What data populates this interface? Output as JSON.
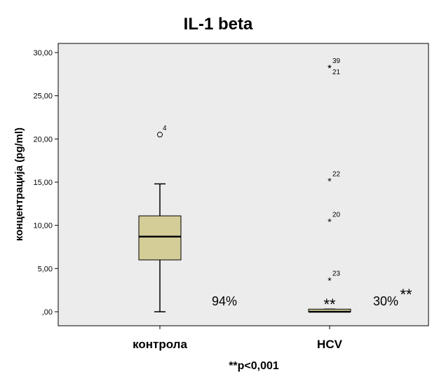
{
  "chart_data": {
    "type": "boxplot",
    "title": "IL-1 beta",
    "ylabel": "концентрација (pg/ml)",
    "xlabel": "",
    "ylim": [
      -1.5,
      32
    ],
    "yticks": [
      0,
      5,
      10,
      15,
      20,
      25,
      30
    ],
    "ytick_labels": [
      ",00",
      "5,00",
      "10,00",
      "15,00",
      "20,00",
      "25,00",
      "30,00"
    ],
    "categories": [
      "контрола",
      "HCV"
    ],
    "boxes": [
      {
        "category": "контрола",
        "whisker_low": 0.0,
        "q1": 6.0,
        "median": 8.7,
        "q3": 11.1,
        "whisker_high": 14.8,
        "outliers": [
          {
            "value": 20.5,
            "marker": "circle",
            "label": "4"
          }
        ],
        "annotation": "94%"
      },
      {
        "category": "HCV",
        "whisker_low": 0.0,
        "q1": 0.0,
        "median": 0.0,
        "q3": 0.3,
        "whisker_high": 0.3,
        "outliers": [
          {
            "value": 28.3,
            "marker": "star",
            "label": "39"
          },
          {
            "value": 28.3,
            "marker": "star",
            "label": "21"
          },
          {
            "value": 15.2,
            "marker": "star",
            "label": "22"
          },
          {
            "value": 10.5,
            "marker": "star",
            "label": "20"
          },
          {
            "value": 3.7,
            "marker": "star",
            "label": "23"
          }
        ],
        "annotation": "30%",
        "annotation_mark": "**"
      }
    ],
    "box_color": "#d4cd98",
    "plot_background": "#ececec",
    "footnote": "**p<0,001"
  }
}
